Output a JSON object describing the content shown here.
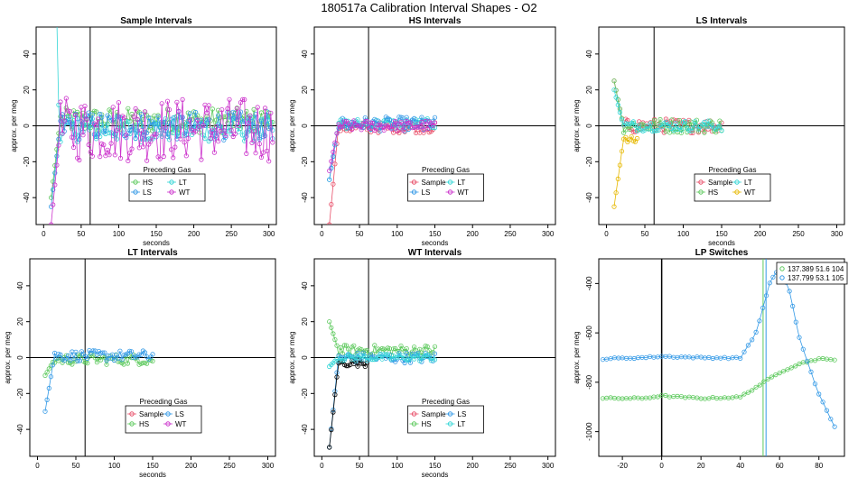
{
  "figure": {
    "title": "180517a   Calibration Interval Shapes - O2"
  },
  "colors": {
    "Sample": "#E8506A",
    "HS": "#5DC95D",
    "LS": "#3399E6",
    "LT": "#33D6D6",
    "WT": "#CC33CC",
    "Black": "#000000"
  },
  "chart_data": [
    {
      "type": "scatter",
      "title": "Sample Intervals",
      "xlabel": "seconds",
      "ylabel": "approx. per meg",
      "xlim": [
        -10,
        310
      ],
      "ylim": [
        -55,
        55
      ],
      "xticks": [
        0,
        50,
        100,
        150,
        200,
        250,
        300
      ],
      "yticks": [
        -40,
        -20,
        0,
        20,
        40
      ],
      "vline": 62,
      "hline": 0,
      "legend": {
        "title": "Preceding Gas",
        "entries": [
          "HS",
          "LT",
          "LS",
          "WT"
        ],
        "position": "bottom-center"
      },
      "series": [
        {
          "name": "HS",
          "color": "HS",
          "xmax": 305,
          "amp": 7,
          "offset": 3,
          "startv": -40,
          "spike": false
        },
        {
          "name": "LT",
          "color": "LT",
          "xmax": 305,
          "amp": 7,
          "offset": -2,
          "startv": 80,
          "spike": true
        },
        {
          "name": "LS",
          "color": "LS",
          "xmax": 305,
          "amp": 8,
          "offset": 0,
          "startv": -45,
          "spike": false
        },
        {
          "name": "WT",
          "color": "WT",
          "xmax": 305,
          "amp": 18,
          "offset": -2,
          "startv": -55,
          "spike": false
        }
      ]
    },
    {
      "type": "scatter",
      "title": "HS Intervals",
      "xlabel": "seconds",
      "ylabel": "approx. per meg",
      "xlim": [
        -10,
        310
      ],
      "ylim": [
        -55,
        55
      ],
      "xticks": [
        0,
        50,
        100,
        150,
        200,
        250,
        300
      ],
      "yticks": [
        -40,
        -20,
        0,
        20,
        40
      ],
      "vline": 62,
      "hline": 0,
      "legend": {
        "title": "Preceding Gas",
        "entries": [
          "Sample",
          "LT",
          "LS",
          "WT"
        ],
        "position": "center"
      },
      "series": [
        {
          "name": "Sample",
          "color": "Sample",
          "xmax": 150,
          "amp": 3,
          "offset": -1,
          "startv": -55,
          "spike": false
        },
        {
          "name": "LT",
          "color": "LT",
          "xmax": 150,
          "amp": 3,
          "offset": 1,
          "startv": -30,
          "spike": false
        },
        {
          "name": "LS",
          "color": "LS",
          "xmax": 150,
          "amp": 4,
          "offset": 1,
          "startv": -30,
          "spike": false
        },
        {
          "name": "WT",
          "color": "WT",
          "xmax": 150,
          "amp": 3,
          "offset": 0,
          "startv": -25,
          "spike": false
        }
      ]
    },
    {
      "type": "scatter",
      "title": "LS Intervals",
      "xlabel": "seconds",
      "ylabel": "approx. per meg",
      "xlim": [
        -10,
        310
      ],
      "ylim": [
        -55,
        55
      ],
      "xticks": [
        0,
        50,
        100,
        150,
        200,
        250,
        300
      ],
      "yticks": [
        -40,
        -20,
        0,
        20,
        40
      ],
      "vline": 62,
      "hline": 0,
      "legend": {
        "title": "Preceding Gas",
        "entries": [
          "Sample",
          "LT",
          "HS",
          "WT"
        ],
        "position": "center"
      },
      "series": [
        {
          "name": "Sample",
          "color": "Sample",
          "xmax": 150,
          "amp": 4,
          "offset": 0,
          "startv": 25,
          "spike": false
        },
        {
          "name": "HS",
          "color": "HS",
          "xmax": 150,
          "amp": 4,
          "offset": 0,
          "startv": 25,
          "spike": false
        },
        {
          "name": "LT",
          "color": "LT",
          "xmax": 150,
          "amp": 3,
          "offset": 0,
          "startv": 20,
          "spike": false
        },
        {
          "name": "WT",
          "color": "#E6B800",
          "xmax": 40,
          "amp": 2,
          "offset": -8,
          "startv": -45,
          "spike": false
        }
      ]
    },
    {
      "type": "scatter",
      "title": "LT Intervals",
      "xlabel": "seconds",
      "ylabel": "approx. per meg",
      "xlim": [
        -10,
        310
      ],
      "ylim": [
        -55,
        55
      ],
      "xticks": [
        0,
        50,
        100,
        150,
        200,
        250,
        300
      ],
      "yticks": [
        -40,
        -20,
        0,
        20,
        40
      ],
      "vline": 62,
      "hline": 0,
      "legend": {
        "title": "Preceding Gas",
        "entries": [
          "Sample",
          "LS",
          "HS",
          "WT"
        ],
        "position": "bottom-center"
      },
      "series": [
        {
          "name": "HS",
          "color": "HS",
          "xmax": 150,
          "amp": 3,
          "offset": -1,
          "startv": -10,
          "spike": false
        },
        {
          "name": "LS",
          "color": "LS",
          "xmax": 150,
          "amp": 3,
          "offset": 1,
          "startv": -30,
          "spike": false
        }
      ]
    },
    {
      "type": "scatter",
      "title": "WT Intervals",
      "xlabel": "seconds",
      "ylabel": "approx. per meg",
      "xlim": [
        -10,
        310
      ],
      "ylim": [
        -55,
        55
      ],
      "xticks": [
        0,
        50,
        100,
        150,
        200,
        250,
        300
      ],
      "yticks": [
        -40,
        -20,
        0,
        20,
        40
      ],
      "vline": 62,
      "hline": 0,
      "legend": {
        "title": "Preceding Gas",
        "entries": [
          "Sample",
          "LS",
          "HS",
          "LT"
        ],
        "position": "bottom-center"
      },
      "series": [
        {
          "name": "HS",
          "color": "HS",
          "xmax": 150,
          "amp": 3,
          "offset": 4,
          "startv": 20,
          "spike": false
        },
        {
          "name": "LS",
          "color": "LS",
          "xmax": 150,
          "amp": 3,
          "offset": 0,
          "startv": -50,
          "spike": false
        },
        {
          "name": "Black",
          "color": "Black",
          "xmax": 60,
          "amp": 2,
          "offset": -3,
          "startv": -50,
          "spike": false
        },
        {
          "name": "LT",
          "color": "LT",
          "xmax": 150,
          "amp": 2,
          "offset": 0,
          "startv": -5,
          "spike": false
        }
      ]
    },
    {
      "type": "line",
      "title": "LP Switches",
      "xlabel": "",
      "ylabel": "approx. per meg",
      "xlim": [
        -32,
        93
      ],
      "ylim": [
        -1100,
        -300
      ],
      "xticks": [
        -20,
        0,
        20,
        40,
        60,
        80
      ],
      "yticks": [
        -1000,
        -800,
        -600,
        -400
      ],
      "vline": 0,
      "vlines": [
        {
          "x": 51.6,
          "color": "HS"
        },
        {
          "x": 53.1,
          "color": "LS"
        }
      ],
      "legend": {
        "entries": [
          "137.389 51.6 104",
          "137.799 53.1 105"
        ],
        "position": "top-right"
      },
      "series": [
        {
          "name": "137.389 51.6 104",
          "color": "HS",
          "points": [
            [
              -30,
              -865
            ],
            [
              -10,
              -865
            ],
            [
              0,
              -855
            ],
            [
              20,
              -865
            ],
            [
              40,
              -860
            ],
            [
              50,
              -810
            ],
            [
              60,
              -760
            ],
            [
              70,
              -725
            ],
            [
              80,
              -705
            ],
            [
              88,
              -710
            ]
          ]
        },
        {
          "name": "137.799 53.1 105",
          "color": "LS",
          "points": [
            [
              -30,
              -705
            ],
            [
              -10,
              -700
            ],
            [
              0,
              -695
            ],
            [
              20,
              -700
            ],
            [
              40,
              -702
            ],
            [
              48,
              -600
            ],
            [
              55,
              -400
            ],
            [
              60,
              -330
            ],
            [
              65,
              -430
            ],
            [
              70,
              -620
            ],
            [
              80,
              -850
            ],
            [
              88,
              -980
            ]
          ]
        }
      ]
    }
  ]
}
